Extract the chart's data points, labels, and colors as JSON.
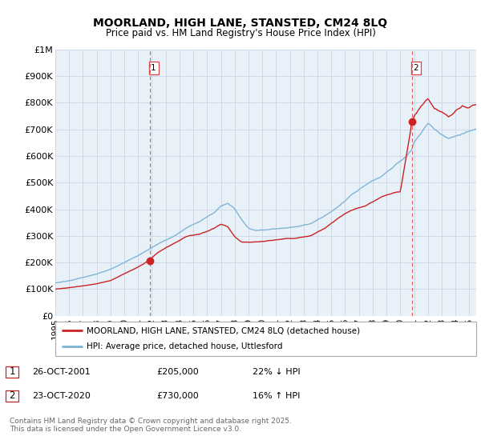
{
  "title": "MOORLAND, HIGH LANE, STANSTED, CM24 8LQ",
  "subtitle": "Price paid vs. HM Land Registry's House Price Index (HPI)",
  "x_start": 1995.0,
  "x_end": 2025.5,
  "y_min": 0,
  "y_max": 1000000,
  "yticks": [
    0,
    100000,
    200000,
    300000,
    400000,
    500000,
    600000,
    700000,
    800000,
    900000,
    1000000
  ],
  "ytick_labels": [
    "£0",
    "£100K",
    "£200K",
    "£300K",
    "£400K",
    "£500K",
    "£600K",
    "£700K",
    "£800K",
    "£900K",
    "£1M"
  ],
  "hpi_color": "#7ab3d4",
  "price_color": "#cc2222",
  "vline_color": "#dd4444",
  "grid_color": "#d0d8e8",
  "bg_color": "#e8f0f8",
  "transaction1_x": 2001.83,
  "transaction1_y": 205000,
  "transaction1_label": "1",
  "transaction2_x": 2020.83,
  "transaction2_y": 730000,
  "transaction2_label": "2",
  "legend_line1": "MOORLAND, HIGH LANE, STANSTED, CM24 8LQ (detached house)",
  "legend_line2": "HPI: Average price, detached house, Uttlesford",
  "footnote": "Contains HM Land Registry data © Crown copyright and database right 2025.\nThis data is licensed under the Open Government Licence v3.0.",
  "xtick_years": [
    1995,
    1996,
    1997,
    1998,
    1999,
    2000,
    2001,
    2002,
    2003,
    2004,
    2005,
    2006,
    2007,
    2008,
    2009,
    2010,
    2011,
    2012,
    2013,
    2014,
    2015,
    2016,
    2017,
    2018,
    2019,
    2020,
    2021,
    2022,
    2023,
    2024,
    2025
  ],
  "hpi_anchors_x": [
    1995.0,
    1996.0,
    1997.0,
    1998.0,
    1999.0,
    2000.0,
    2001.0,
    2001.83,
    2002.5,
    2003.5,
    2004.5,
    2005.5,
    2006.5,
    2007.0,
    2007.5,
    2008.0,
    2008.5,
    2009.0,
    2009.5,
    2010.5,
    2011.5,
    2012.5,
    2013.5,
    2014.5,
    2015.5,
    2016.5,
    2017.5,
    2018.5,
    2019.5,
    2020.0,
    2020.5,
    2020.83,
    2021.0,
    2021.5,
    2022.0,
    2022.5,
    2023.0,
    2023.5,
    2024.0,
    2024.5,
    2025.0,
    2025.5
  ],
  "hpi_anchors_y": [
    125000,
    133000,
    145000,
    158000,
    175000,
    200000,
    225000,
    250000,
    270000,
    295000,
    330000,
    355000,
    385000,
    410000,
    420000,
    400000,
    360000,
    330000,
    320000,
    325000,
    330000,
    335000,
    345000,
    375000,
    410000,
    455000,
    490000,
    520000,
    560000,
    580000,
    600000,
    620000,
    650000,
    680000,
    720000,
    700000,
    680000,
    665000,
    670000,
    680000,
    690000,
    700000
  ],
  "price_anchors_x": [
    1995.0,
    1996.0,
    1997.0,
    1998.0,
    1999.0,
    2000.0,
    2001.0,
    2001.83,
    2002.5,
    2003.5,
    2004.5,
    2005.5,
    2006.5,
    2007.0,
    2007.5,
    2008.0,
    2008.5,
    2009.0,
    2009.5,
    2010.5,
    2011.5,
    2012.5,
    2013.5,
    2014.5,
    2015.5,
    2016.5,
    2017.5,
    2018.5,
    2019.5,
    2020.0,
    2020.83,
    2021.0,
    2021.5,
    2022.0,
    2022.5,
    2023.0,
    2023.5,
    2024.0,
    2024.5,
    2025.0,
    2025.5
  ],
  "price_anchors_y": [
    98000,
    103000,
    110000,
    118000,
    130000,
    155000,
    180000,
    205000,
    235000,
    265000,
    295000,
    305000,
    325000,
    340000,
    330000,
    295000,
    275000,
    275000,
    278000,
    283000,
    292000,
    295000,
    305000,
    330000,
    370000,
    400000,
    420000,
    450000,
    470000,
    475000,
    730000,
    760000,
    800000,
    830000,
    790000,
    780000,
    760000,
    790000,
    810000,
    800000,
    810000
  ]
}
